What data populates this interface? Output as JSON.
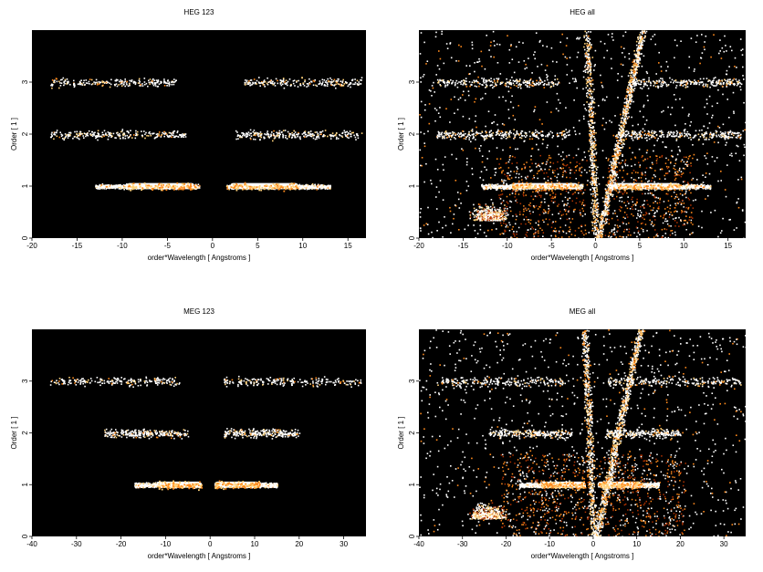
{
  "chart_data": [
    {
      "type": "heatmap",
      "title": "HEG 123",
      "xlabel": "order*Wavelength [ Angstroms ]",
      "ylabel": "Order [ 1 ]",
      "xlim": [
        -20,
        17
      ],
      "ylim": [
        0,
        4
      ],
      "xticks": [
        -20,
        -15,
        -10,
        -5,
        0,
        5,
        10,
        15
      ],
      "yticks": [
        0,
        1,
        2,
        3
      ],
      "background": "#000000",
      "colors": [
        "#ffffff",
        "#ffd27a",
        "#ff8a1c",
        "#b23300"
      ],
      "bands": [
        {
          "order": 1,
          "x_ranges": [
            [
              -13,
              -1.5
            ],
            [
              1.5,
              13
            ]
          ],
          "core": [
            [
              -9.5,
              -2
            ],
            [
              2,
              9.5
            ]
          ],
          "intensity": "high"
        },
        {
          "order": 2,
          "x_ranges": [
            [
              -18,
              -3
            ],
            [
              2.5,
              16.5
            ]
          ],
          "intensity": "medium"
        },
        {
          "order": 3,
          "x_ranges": [
            [
              -18,
              -4
            ],
            [
              3.5,
              16.5
            ]
          ],
          "intensity": "low"
        }
      ],
      "wings": false
    },
    {
      "type": "heatmap",
      "title": "HEG all",
      "xlabel": "order*Wavelength [ Angstroms ]",
      "ylabel": "Order [ 1 ]",
      "xlim": [
        -20,
        17
      ],
      "ylim": [
        0,
        4
      ],
      "xticks": [
        -20,
        -15,
        -10,
        -5,
        0,
        5,
        10,
        15
      ],
      "yticks": [
        0,
        1,
        2,
        3
      ],
      "background": "#000000",
      "colors": [
        "#ffffff",
        "#ffd27a",
        "#ff8a1c",
        "#b23300"
      ],
      "bands": [
        {
          "order": 1,
          "x_ranges": [
            [
              -13,
              -1.5
            ],
            [
              1.5,
              13
            ]
          ],
          "core": [
            [
              -9.5,
              -2
            ],
            [
              2,
              9.5
            ]
          ],
          "intensity": "high"
        },
        {
          "order": 2,
          "x_ranges": [
            [
              -18,
              -3
            ],
            [
              2.5,
              16.5
            ]
          ],
          "intensity": "medium"
        },
        {
          "order": 3,
          "x_ranges": [
            [
              -18,
              -4
            ],
            [
              3.5,
              16.5
            ]
          ],
          "intensity": "low"
        }
      ],
      "wings": true
    },
    {
      "type": "heatmap",
      "title": "MEG 123",
      "xlabel": "order*Wavelength [ Angstroms ]",
      "ylabel": "Order [ 1 ]",
      "xlim": [
        -40,
        35
      ],
      "ylim": [
        0,
        4
      ],
      "xticks": [
        -40,
        -30,
        -20,
        -10,
        0,
        10,
        20,
        30
      ],
      "yticks": [
        0,
        1,
        2,
        3
      ],
      "background": "#000000",
      "colors": [
        "#ffffff",
        "#ffd27a",
        "#ff8a1c",
        "#b23300"
      ],
      "bands": [
        {
          "order": 1,
          "x_ranges": [
            [
              -17,
              -2
            ],
            [
              1,
              15
            ]
          ],
          "core": [
            [
              -12,
              -2
            ],
            [
              1,
              11
            ]
          ],
          "intensity": "high"
        },
        {
          "order": 2,
          "x_ranges": [
            [
              -24,
              -5
            ],
            [
              3,
              20
            ]
          ],
          "intensity": "medium"
        },
        {
          "order": 3,
          "x_ranges": [
            [
              -36,
              -7
            ],
            [
              3,
              34
            ]
          ],
          "intensity": "low"
        }
      ],
      "wings": false
    },
    {
      "type": "heatmap",
      "title": "MEG all",
      "xlabel": "order*Wavelength [ Angstroms ]",
      "ylabel": "Order [ 1 ]",
      "xlim": [
        -40,
        35
      ],
      "ylim": [
        0,
        4
      ],
      "xticks": [
        -40,
        -30,
        -20,
        -10,
        0,
        10,
        20,
        30
      ],
      "yticks": [
        0,
        1,
        2,
        3
      ],
      "background": "#000000",
      "colors": [
        "#ffffff",
        "#ffd27a",
        "#ff8a1c",
        "#b23300"
      ],
      "bands": [
        {
          "order": 1,
          "x_ranges": [
            [
              -17,
              -2
            ],
            [
              1,
              15
            ]
          ],
          "core": [
            [
              -12,
              -2
            ],
            [
              1,
              11
            ]
          ],
          "intensity": "high"
        },
        {
          "order": 2,
          "x_ranges": [
            [
              -24,
              -5
            ],
            [
              3,
              20
            ]
          ],
          "intensity": "medium"
        },
        {
          "order": 3,
          "x_ranges": [
            [
              -36,
              -7
            ],
            [
              3,
              34
            ]
          ],
          "intensity": "low"
        }
      ],
      "wings": true
    }
  ]
}
